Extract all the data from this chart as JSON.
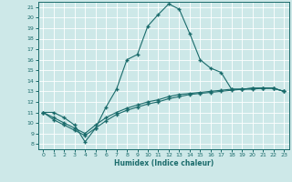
{
  "xlabel": "Humidex (Indice chaleur)",
  "xlim": [
    -0.5,
    23.5
  ],
  "ylim": [
    7.5,
    21.5
  ],
  "yticks": [
    8,
    9,
    10,
    11,
    12,
    13,
    14,
    15,
    16,
    17,
    18,
    19,
    20,
    21
  ],
  "xticks": [
    0,
    1,
    2,
    3,
    4,
    5,
    6,
    7,
    8,
    9,
    10,
    11,
    12,
    13,
    14,
    15,
    16,
    17,
    18,
    19,
    20,
    21,
    22,
    23
  ],
  "bg_color": "#cde8e8",
  "line_color": "#1a6b6b",
  "grid_color": "#b8d8d8",
  "line1_x": [
    0,
    1,
    2,
    3,
    4,
    5,
    6,
    7,
    8,
    9,
    10,
    11,
    12,
    13,
    14,
    15,
    16,
    17,
    18,
    19,
    20,
    21,
    22,
    23
  ],
  "line1_y": [
    11.0,
    11.0,
    10.5,
    9.8,
    8.2,
    9.5,
    11.5,
    13.2,
    16.0,
    16.5,
    19.2,
    20.3,
    21.3,
    20.8,
    18.5,
    16.0,
    15.2,
    14.8,
    13.2,
    13.2,
    13.3,
    13.3,
    13.3,
    13.0
  ],
  "line2_x": [
    0,
    1,
    2,
    3,
    4,
    5,
    6,
    7,
    8,
    9,
    10,
    11,
    12,
    13,
    14,
    15,
    16,
    17,
    18,
    19,
    20,
    21,
    22,
    23
  ],
  "line2_y": [
    11.0,
    10.5,
    10.0,
    9.5,
    9.0,
    9.8,
    10.5,
    11.0,
    11.4,
    11.7,
    12.0,
    12.2,
    12.5,
    12.7,
    12.8,
    12.9,
    13.0,
    13.1,
    13.2,
    13.2,
    13.3,
    13.3,
    13.3,
    13.0
  ],
  "line3_x": [
    0,
    1,
    2,
    3,
    4,
    5,
    6,
    7,
    8,
    9,
    10,
    11,
    12,
    13,
    14,
    15,
    16,
    17,
    18,
    19,
    20,
    21,
    22,
    23
  ],
  "line3_y": [
    11.0,
    10.3,
    9.8,
    9.3,
    8.8,
    9.5,
    10.2,
    10.8,
    11.2,
    11.5,
    11.8,
    12.0,
    12.3,
    12.5,
    12.7,
    12.8,
    12.9,
    13.0,
    13.1,
    13.2,
    13.2,
    13.3,
    13.3,
    13.0
  ]
}
